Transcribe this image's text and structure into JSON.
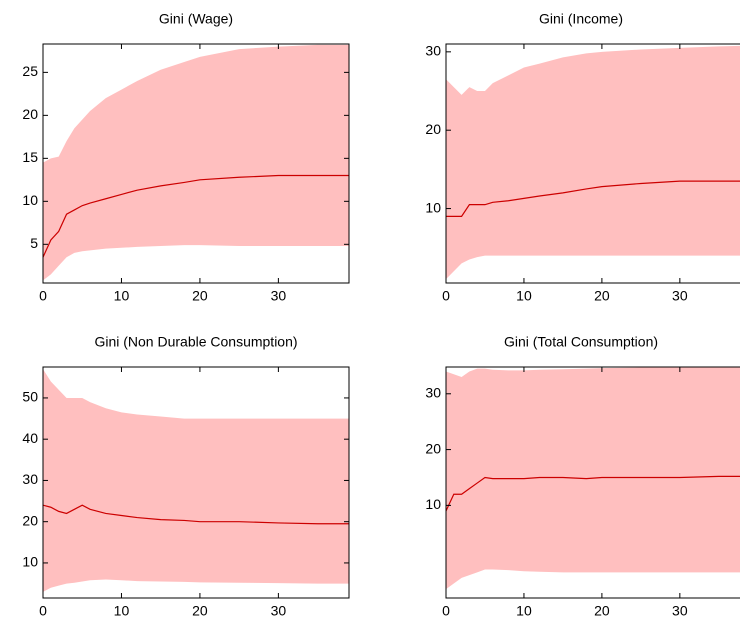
{
  "chart_data": [
    {
      "type": "line",
      "title": "Gini (Wage)",
      "x": [
        0,
        1,
        2,
        3,
        4,
        5,
        6,
        8,
        10,
        12,
        15,
        18,
        20,
        25,
        30,
        35,
        39
      ],
      "values": [
        3.5,
        5.5,
        6.5,
        8.5,
        9,
        9.5,
        9.8,
        10.3,
        10.8,
        11.3,
        11.8,
        12.2,
        12.5,
        12.8,
        13,
        13,
        13
      ],
      "upper": [
        14.5,
        15,
        15.2,
        17,
        18.5,
        19.5,
        20.5,
        22,
        23,
        24,
        25.3,
        26.2,
        26.8,
        27.7,
        28,
        28.2,
        28.2
      ],
      "lower": [
        0.8,
        1.5,
        2.5,
        3.5,
        4,
        4.2,
        4.3,
        4.5,
        4.6,
        4.7,
        4.8,
        4.9,
        4.9,
        4.8,
        4.8,
        4.8,
        4.8
      ],
      "color": "#cc0000",
      "band_color": "#ffbfbf",
      "xlim": [
        0,
        39
      ],
      "xticks": [
        0,
        10,
        20,
        30
      ],
      "ylim": [
        0.5,
        28.3
      ],
      "yticks": [
        5,
        10,
        15,
        20,
        25
      ]
    },
    {
      "type": "line",
      "title": "Gini (Income)",
      "x": [
        0,
        1,
        2,
        3,
        4,
        5,
        6,
        8,
        10,
        12,
        15,
        18,
        20,
        25,
        30,
        35,
        39
      ],
      "values": [
        9,
        9,
        9,
        10.5,
        10.5,
        10.5,
        10.8,
        11,
        11.3,
        11.6,
        12,
        12.5,
        12.8,
        13.2,
        13.5,
        13.5,
        13.5
      ],
      "upper": [
        26.5,
        25.5,
        24.5,
        25.5,
        25,
        25,
        26,
        27,
        28,
        28.5,
        29.3,
        29.8,
        30,
        30.3,
        30.5,
        30.7,
        30.8
      ],
      "lower": [
        1,
        2,
        3,
        3.5,
        3.8,
        4,
        4,
        4,
        4,
        4,
        4,
        4,
        4,
        4,
        4,
        4,
        4
      ],
      "color": "#cc0000",
      "band_color": "#ffbfbf",
      "xlim": [
        0,
        39
      ],
      "xticks": [
        0,
        10,
        20,
        30
      ],
      "ylim": [
        0.5,
        31
      ],
      "yticks": [
        10,
        20,
        30
      ]
    },
    {
      "type": "line",
      "title": "Gini (Non Durable Consumption)",
      "x": [
        0,
        1,
        2,
        3,
        4,
        5,
        6,
        8,
        10,
        12,
        15,
        18,
        20,
        25,
        30,
        35,
        39
      ],
      "values": [
        24,
        23.5,
        22.5,
        22,
        23,
        24,
        23,
        22,
        21.5,
        21,
        20.5,
        20.3,
        20,
        20,
        19.7,
        19.5,
        19.5
      ],
      "upper": [
        57,
        54,
        52,
        50,
        50,
        50,
        49,
        47.5,
        46.5,
        46,
        45.5,
        45,
        45,
        45,
        45,
        45,
        45
      ],
      "lower": [
        3,
        4,
        4.5,
        5,
        5.2,
        5.5,
        5.8,
        6,
        5.8,
        5.6,
        5.5,
        5.4,
        5.3,
        5.2,
        5.1,
        5,
        5
      ],
      "color": "#cc0000",
      "band_color": "#ffbfbf",
      "xlim": [
        0,
        39
      ],
      "xticks": [
        0,
        10,
        20,
        30
      ],
      "ylim": [
        1.5,
        57.5
      ],
      "yticks": [
        10,
        20,
        30,
        40,
        50
      ]
    },
    {
      "type": "line",
      "title": "Gini (Total Consumption)",
      "x": [
        0,
        1,
        2,
        3,
        4,
        5,
        6,
        8,
        10,
        12,
        15,
        18,
        20,
        25,
        30,
        35,
        39
      ],
      "values": [
        9,
        12,
        12,
        13,
        14,
        15,
        14.8,
        14.8,
        14.8,
        15,
        15,
        14.8,
        15,
        15,
        15,
        15.2,
        15.2
      ],
      "upper": [
        34,
        33.5,
        33,
        34,
        34.5,
        34.5,
        34.3,
        34.2,
        34.2,
        34.3,
        34.4,
        34.5,
        34.6,
        34.7,
        34.8,
        34.8,
        34.8
      ],
      "lower": [
        -5,
        -4,
        -3,
        -2.5,
        -2,
        -1.5,
        -1.5,
        -1.6,
        -1.8,
        -1.9,
        -2,
        -2,
        -2,
        -2,
        -2,
        -2,
        -2
      ],
      "color": "#cc0000",
      "band_color": "#ffbfbf",
      "xlim": [
        0,
        39
      ],
      "xticks": [
        0,
        10,
        20,
        30
      ],
      "ylim": [
        -6.6,
        34.8
      ],
      "yticks": [
        10,
        20,
        30
      ]
    }
  ]
}
